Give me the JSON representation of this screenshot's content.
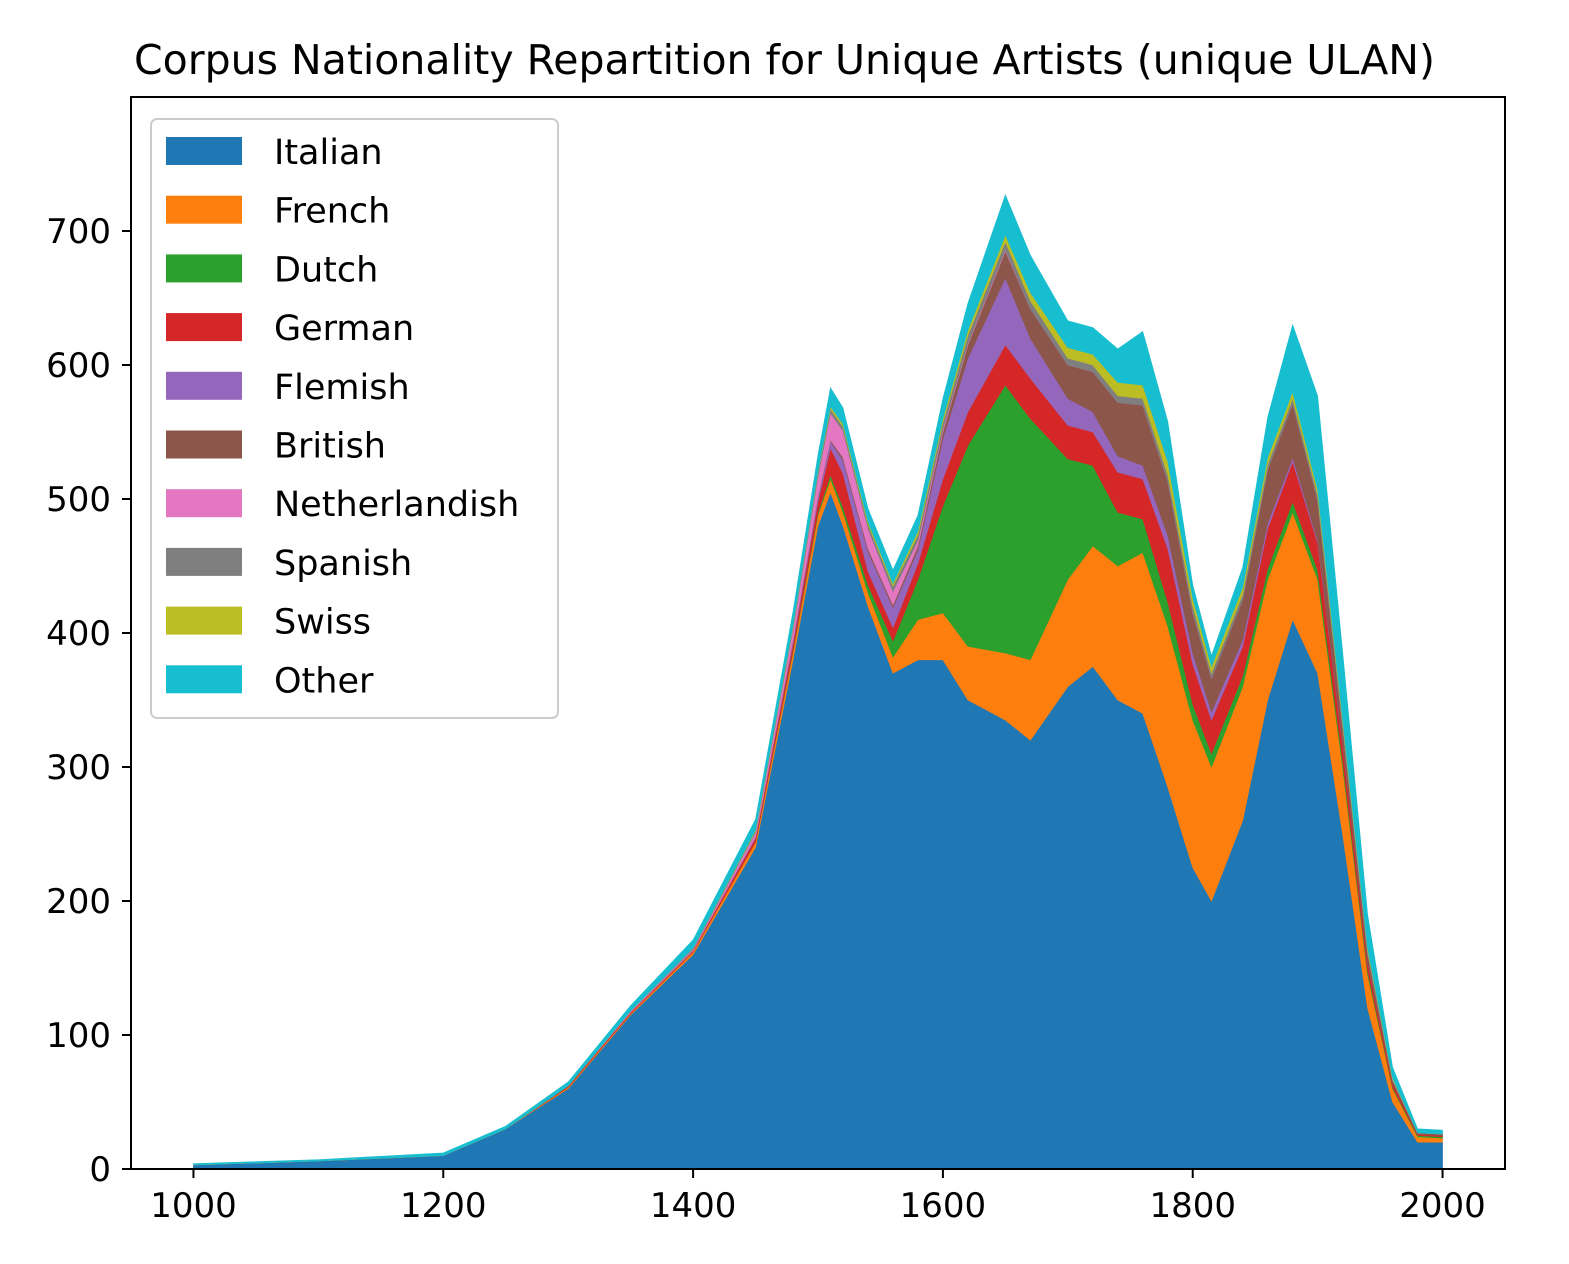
{
  "chart_data": {
    "type": "area",
    "stacked": true,
    "title": "Corpus Nationality Repartition for Unique Artists (unique ULAN)",
    "xlabel": "",
    "ylabel": "",
    "xlim": [
      950,
      2050
    ],
    "ylim": [
      0,
      800
    ],
    "xticks": [
      1000,
      1200,
      1400,
      1600,
      1800,
      2000
    ],
    "yticks": [
      0,
      100,
      200,
      300,
      400,
      500,
      600,
      700
    ],
    "legend_position": "upper-left",
    "grid": false,
    "x": [
      1000,
      1100,
      1200,
      1250,
      1300,
      1350,
      1400,
      1450,
      1480,
      1500,
      1510,
      1520,
      1540,
      1560,
      1580,
      1600,
      1620,
      1650,
      1670,
      1700,
      1720,
      1740,
      1760,
      1780,
      1800,
      1815,
      1840,
      1860,
      1880,
      1900,
      1920,
      1940,
      1960,
      1980,
      2000
    ],
    "series": [
      {
        "name": "Italian",
        "color": "#1f77b4",
        "values": [
          3,
          6,
          10,
          30,
          60,
          115,
          160,
          240,
          380,
          480,
          505,
          480,
          420,
          370,
          380,
          380,
          350,
          335,
          320,
          360,
          375,
          350,
          340,
          285,
          225,
          200,
          260,
          350,
          410,
          370,
          250,
          120,
          50,
          20,
          20
        ]
      },
      {
        "name": "French",
        "color": "#ff7f0e",
        "values": [
          0,
          0,
          0,
          0,
          1,
          1,
          2,
          4,
          6,
          8,
          10,
          10,
          10,
          12,
          30,
          35,
          40,
          50,
          60,
          80,
          90,
          100,
          120,
          120,
          110,
          100,
          100,
          90,
          80,
          70,
          50,
          25,
          10,
          4,
          3
        ]
      },
      {
        "name": "Dutch",
        "color": "#2ca02c",
        "values": [
          0,
          0,
          0,
          0,
          0,
          0,
          0,
          0,
          1,
          2,
          3,
          4,
          6,
          12,
          30,
          80,
          150,
          200,
          180,
          90,
          60,
          40,
          25,
          18,
          12,
          10,
          8,
          8,
          8,
          7,
          5,
          3,
          1,
          1,
          1
        ]
      },
      {
        "name": "German",
        "color": "#d62728",
        "values": [
          0,
          0,
          0,
          0,
          1,
          1,
          1,
          3,
          5,
          8,
          20,
          25,
          10,
          10,
          12,
          20,
          25,
          30,
          30,
          25,
          25,
          30,
          30,
          40,
          30,
          25,
          22,
          30,
          30,
          20,
          12,
          6,
          3,
          1,
          1
        ]
      },
      {
        "name": "Flemish",
        "color": "#9467bd",
        "values": [
          0,
          0,
          0,
          0,
          0,
          0,
          0,
          1,
          2,
          3,
          5,
          10,
          15,
          15,
          10,
          30,
          40,
          50,
          30,
          20,
          15,
          12,
          10,
          10,
          8,
          6,
          5,
          4,
          3,
          2,
          1,
          1,
          0,
          0,
          0
        ]
      },
      {
        "name": "British",
        "color": "#8c564b",
        "values": [
          0,
          0,
          0,
          0,
          0,
          0,
          0,
          0,
          1,
          1,
          1,
          2,
          2,
          2,
          3,
          5,
          10,
          20,
          22,
          25,
          30,
          40,
          45,
          40,
          30,
          25,
          30,
          40,
          40,
          30,
          12,
          6,
          2,
          1,
          1
        ]
      },
      {
        "name": "Netherlandish",
        "color": "#e377c2",
        "values": [
          0,
          0,
          0,
          0,
          0,
          1,
          1,
          3,
          8,
          15,
          20,
          20,
          15,
          10,
          4,
          2,
          1,
          1,
          0,
          0,
          0,
          0,
          0,
          0,
          0,
          0,
          0,
          0,
          0,
          0,
          0,
          0,
          0,
          0,
          0
        ]
      },
      {
        "name": "Spanish",
        "color": "#7f7f7f",
        "values": [
          0,
          0,
          0,
          0,
          0,
          0,
          1,
          1,
          2,
          3,
          3,
          3,
          3,
          4,
          4,
          5,
          6,
          6,
          6,
          5,
          5,
          5,
          5,
          5,
          5,
          4,
          4,
          4,
          4,
          4,
          3,
          2,
          1,
          0,
          0
        ]
      },
      {
        "name": "Swiss",
        "color": "#bcbd22",
        "values": [
          0,
          0,
          0,
          0,
          0,
          0,
          0,
          1,
          1,
          1,
          2,
          2,
          2,
          2,
          3,
          3,
          4,
          5,
          6,
          8,
          8,
          10,
          10,
          10,
          6,
          5,
          5,
          5,
          5,
          4,
          3,
          2,
          1,
          0,
          0
        ]
      },
      {
        "name": "Other",
        "color": "#17becf",
        "values": [
          1,
          1,
          2,
          2,
          3,
          4,
          6,
          8,
          10,
          12,
          14,
          12,
          10,
          10,
          12,
          15,
          20,
          30,
          28,
          20,
          20,
          25,
          40,
          30,
          10,
          8,
          15,
          30,
          50,
          70,
          50,
          25,
          8,
          3,
          3
        ]
      }
    ]
  }
}
